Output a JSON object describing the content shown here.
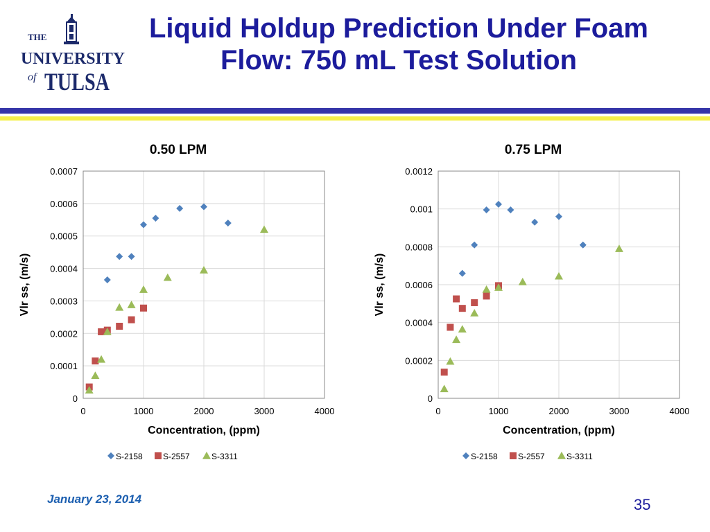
{
  "slide": {
    "title_line1": "Liquid Holdup Prediction Under Foam",
    "title_line2": "Flow: 750 mL Test Solution",
    "date": "January 23, 2014",
    "page": "35"
  },
  "logo": {
    "the": "THE",
    "university": "UNIVERSITY",
    "of": "of",
    "tulsa": "TULSA",
    "colors": {
      "blue": "#1c2a6b",
      "gold": "#d9b24a"
    }
  },
  "colors": {
    "S-2158": "#4f81bd",
    "S-2557": "#c0504d",
    "S-3311": "#9bbb59",
    "title": "#1c1c9c",
    "date": "#1c5fb0"
  },
  "chart_data": [
    {
      "type": "scatter",
      "title": "0.50 LPM",
      "xlabel": "Concentration, (ppm)",
      "ylabel": "Vlr ss, (m/s)",
      "xlim": [
        0,
        4000
      ],
      "ylim": [
        0,
        0.0007
      ],
      "xticks": [
        0,
        1000,
        2000,
        3000,
        4000
      ],
      "yticks": [
        "0",
        "0.0001",
        "0.0002",
        "0.0003",
        "0.0004",
        "0.0005",
        "0.0006",
        "0.0007"
      ],
      "grid": true,
      "legend": "bottom",
      "series": [
        {
          "name": "S-2158",
          "marker": "diamond",
          "x": [
            400,
            600,
            800,
            1000,
            1200,
            1600,
            2000,
            2400
          ],
          "y": [
            0.000365,
            0.000437,
            0.000437,
            0.000535,
            0.000555,
            0.000585,
            0.00059,
            0.00054
          ]
        },
        {
          "name": "S-2557",
          "marker": "square",
          "x": [
            100,
            200,
            300,
            400,
            600,
            800,
            1000
          ],
          "y": [
            3.5e-05,
            0.000115,
            0.000205,
            0.00021,
            0.000222,
            0.000242,
            0.000278
          ]
        },
        {
          "name": "S-3311",
          "marker": "triangle",
          "x": [
            100,
            200,
            300,
            400,
            600,
            800,
            1000,
            1400,
            2000,
            3000
          ],
          "y": [
            2.5e-05,
            7e-05,
            0.00012,
            0.000205,
            0.00028,
            0.000288,
            0.000335,
            0.000372,
            0.000395,
            0.00052
          ]
        }
      ]
    },
    {
      "type": "scatter",
      "title": "0.75 LPM",
      "xlabel": "Concentration, (ppm)",
      "ylabel": "Vlr ss, (m/s)",
      "xlim": [
        0,
        4000
      ],
      "ylim": [
        0,
        0.0012
      ],
      "xticks": [
        0,
        1000,
        2000,
        3000,
        4000
      ],
      "yticks": [
        "0",
        "0.0002",
        "0.0004",
        "0.0006",
        "0.0008",
        "0.001",
        "0.0012"
      ],
      "grid": true,
      "legend": "bottom",
      "series": [
        {
          "name": "S-2158",
          "marker": "diamond",
          "x": [
            400,
            600,
            800,
            1000,
            1200,
            1600,
            2000,
            2400
          ],
          "y": [
            0.00066,
            0.00081,
            0.000995,
            0.001025,
            0.000995,
            0.00093,
            0.00096,
            0.00081
          ]
        },
        {
          "name": "S-2557",
          "marker": "square",
          "x": [
            100,
            200,
            300,
            400,
            600,
            800,
            1000
          ],
          "y": [
            0.000138,
            0.000375,
            0.000525,
            0.000475,
            0.000505,
            0.00054,
            0.000595
          ]
        },
        {
          "name": "S-3311",
          "marker": "triangle",
          "x": [
            100,
            200,
            300,
            400,
            600,
            800,
            1000,
            1400,
            2000,
            3000
          ],
          "y": [
            5e-05,
            0.000195,
            0.00031,
            0.000365,
            0.00045,
            0.000575,
            0.000585,
            0.000615,
            0.000645,
            0.00079
          ]
        }
      ]
    }
  ]
}
